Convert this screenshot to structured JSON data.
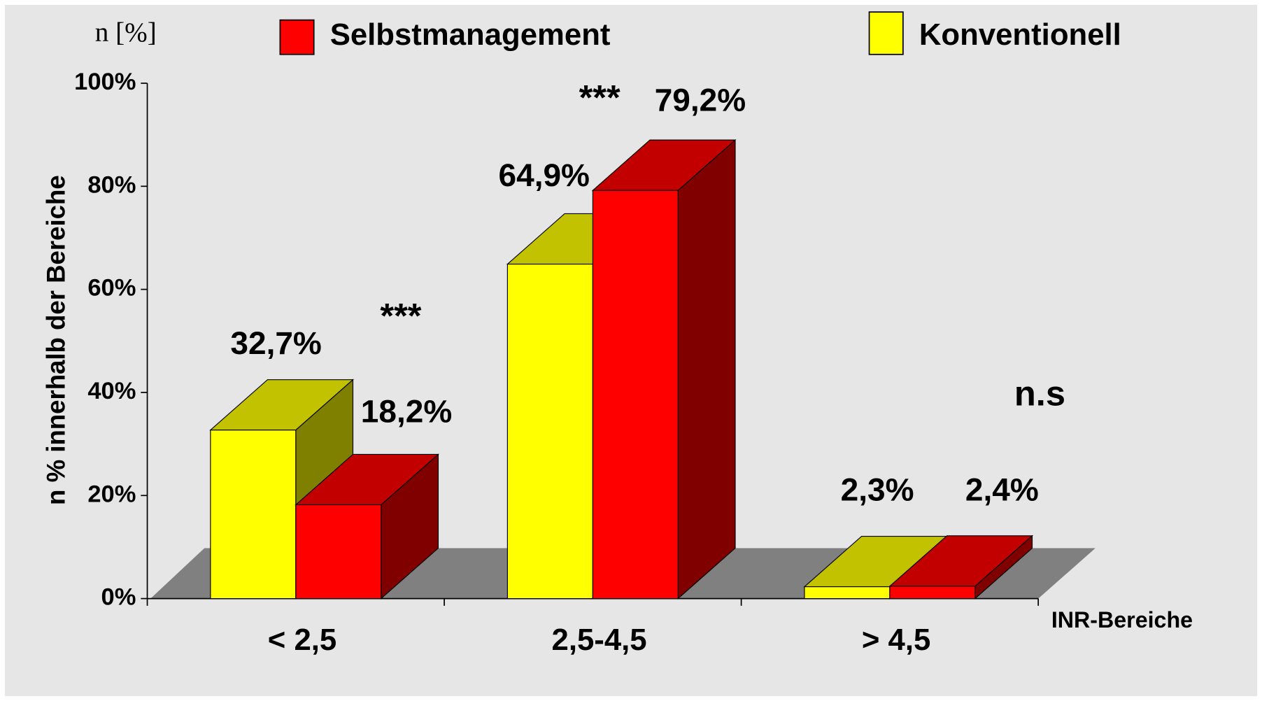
{
  "chart_data": {
    "type": "bar3d",
    "unit_label": "n [%]",
    "y_label": "n % innerhalb der Bereiche",
    "x_label": "INR-Bereiche",
    "categories": [
      "< 2,5",
      "2,5-4,5",
      "> 4,5"
    ],
    "series": [
      {
        "name": "Selbstmanagement",
        "color": "#ff0000",
        "values": [
          18.2,
          79.2,
          2.4
        ],
        "value_labels": [
          "18,2%",
          "79,2%",
          "2,4%"
        ]
      },
      {
        "name": "Konventionell",
        "color": "#ffff00",
        "values": [
          32.7,
          64.9,
          2.3
        ],
        "value_labels": [
          "32,7%",
          "64,9%",
          "2,3%"
        ]
      }
    ],
    "annotations": [
      "***",
      "***",
      "n.s"
    ],
    "ylim": [
      0,
      100
    ],
    "yticks": [
      {
        "value": 0,
        "label": "0%"
      },
      {
        "value": 20,
        "label": "20%"
      },
      {
        "value": 40,
        "label": "40%"
      },
      {
        "value": 60,
        "label": "60%"
      },
      {
        "value": 80,
        "label": "80%"
      },
      {
        "value": 100,
        "label": "100%"
      }
    ]
  }
}
